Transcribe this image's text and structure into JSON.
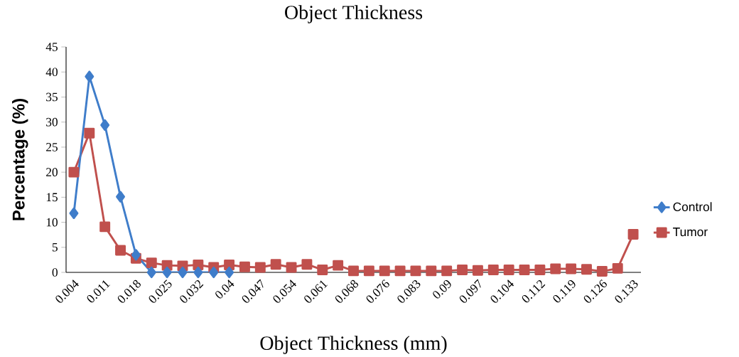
{
  "chart_data": {
    "type": "line",
    "title": "Object Thickness",
    "xlabel": "Object Thickness (mm)",
    "ylabel": "Percentage (%)",
    "categories": [
      "0.004",
      null,
      "0.011",
      null,
      "0.018",
      null,
      "0.025",
      null,
      "0.032",
      null,
      "0.04",
      null,
      "0.047",
      null,
      "0.054",
      null,
      "0.061",
      null,
      "0.068",
      null,
      "0.076",
      null,
      "0.083",
      null,
      "0.09",
      null,
      "0.097",
      null,
      "0.104",
      null,
      "0.112",
      null,
      "0.119",
      null,
      "0.126",
      null,
      "0.133"
    ],
    "series": [
      {
        "name": "Control",
        "color": "#3f7dca",
        "marker": "diamond",
        "values": [
          11.8,
          39.1,
          29.4,
          15.1,
          3.5,
          0,
          0,
          0,
          0,
          0,
          0,
          null,
          null,
          null,
          null,
          null,
          null,
          null,
          null,
          null,
          null,
          null,
          null,
          null,
          null,
          null,
          null,
          null,
          null,
          null,
          null,
          null,
          null,
          null,
          null,
          null,
          null
        ]
      },
      {
        "name": "Tumor",
        "color": "#c0504d",
        "marker": "square",
        "values": [
          20,
          27.8,
          9.1,
          4.4,
          2.8,
          1.9,
          1.4,
          1.3,
          1.5,
          1.0,
          1.5,
          1.1,
          1.0,
          1.6,
          1.0,
          1.6,
          0.5,
          1.4,
          0.3,
          0.3,
          0.3,
          0.3,
          0.3,
          0.3,
          0.3,
          0.5,
          0.4,
          0.5,
          0.5,
          0.5,
          0.5,
          0.7,
          0.7,
          0.6,
          0.2,
          0.8,
          7.6
        ]
      }
    ],
    "ylim": [
      0,
      45
    ],
    "yticks": [
      0,
      5,
      10,
      15,
      20,
      25,
      30,
      35,
      40,
      45
    ],
    "legend": "right"
  }
}
